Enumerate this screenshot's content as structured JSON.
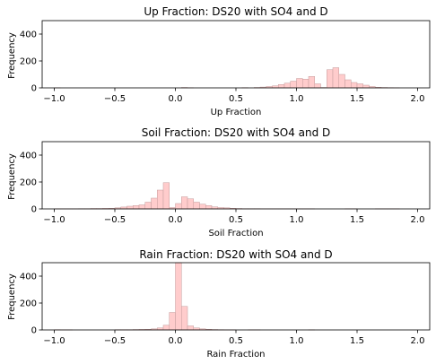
{
  "chart_data": [
    {
      "type": "bar",
      "title": "Up Fraction: DS20 with SO4 and D",
      "xlabel": "Up Fraction",
      "ylabel": "Frequency",
      "xlim": [
        -1.1,
        2.1
      ],
      "ylim": [
        0,
        500
      ],
      "xticks": [
        "−1.0",
        "−0.5",
        "0.0",
        "0.5",
        "1.0",
        "1.5",
        "2.0"
      ],
      "yticks": [
        "0",
        "200",
        "400"
      ],
      "bin_start": -1.0,
      "bin_width": 0.05,
      "counts": [
        1,
        0,
        0,
        0,
        0,
        0,
        0,
        0,
        0,
        0,
        0,
        0,
        0,
        0,
        0,
        0,
        0,
        0,
        0,
        0,
        0,
        3,
        1,
        0,
        0,
        0,
        0,
        0,
        0,
        0,
        0,
        2,
        0,
        3,
        6,
        10,
        15,
        25,
        35,
        50,
        70,
        65,
        85,
        30,
        3,
        135,
        150,
        100,
        60,
        40,
        30,
        20,
        10,
        5,
        3,
        2,
        1,
        0,
        0,
        0,
        0,
        0,
        0,
        0
      ]
    },
    {
      "type": "bar",
      "title": "Soil Fraction: DS20 with SO4 and D",
      "xlabel": "Soil Fraction",
      "ylabel": "Frequency",
      "xlim": [
        -1.1,
        2.1
      ],
      "ylim": [
        0,
        500
      ],
      "xticks": [
        "−1.0",
        "−0.5",
        "0.0",
        "0.5",
        "1.0",
        "1.5",
        "2.0"
      ],
      "yticks": [
        "0",
        "200",
        "400"
      ],
      "bin_start": -1.0,
      "bin_width": 0.05,
      "counts": [
        1,
        1,
        1,
        1,
        2,
        2,
        3,
        3,
        4,
        5,
        8,
        14,
        20,
        25,
        30,
        50,
        80,
        140,
        195,
        10,
        40,
        90,
        75,
        50,
        35,
        25,
        15,
        10,
        8,
        5,
        3,
        2,
        2,
        2,
        1,
        1,
        1,
        1,
        1,
        1,
        1,
        1,
        1,
        0,
        0,
        0,
        0,
        0,
        1,
        1,
        0,
        0,
        0,
        1,
        1,
        1,
        1,
        0,
        0,
        0,
        0,
        0,
        0,
        0
      ]
    },
    {
      "type": "bar",
      "title": "Rain Fraction: DS20 with SO4 and D",
      "xlabel": "Rain Fraction",
      "ylabel": "Frequency",
      "xlim": [
        -1.1,
        2.1
      ],
      "ylim": [
        0,
        500
      ],
      "xticks": [
        "−1.0",
        "−0.5",
        "0.0",
        "0.5",
        "1.0",
        "1.5",
        "2.0"
      ],
      "yticks": [
        "0",
        "200",
        "400"
      ],
      "bin_start": -1.0,
      "bin_width": 0.05,
      "counts": [
        2,
        1,
        1,
        0,
        0,
        0,
        0,
        0,
        0,
        0,
        2,
        2,
        2,
        3,
        4,
        5,
        8,
        15,
        35,
        130,
        500,
        175,
        30,
        15,
        8,
        5,
        3,
        2,
        1,
        1,
        0,
        0,
        1,
        1,
        0,
        0,
        0,
        0,
        0,
        0,
        0,
        0,
        1,
        0,
        0,
        0,
        0,
        0,
        0,
        0,
        0,
        0,
        0,
        0,
        0,
        0,
        0,
        0,
        0,
        0,
        0,
        0,
        0,
        0
      ]
    }
  ],
  "colors": {
    "bar_fill": "#ffcccc",
    "bar_edge": "#c49c9c",
    "axis": "#000000"
  }
}
